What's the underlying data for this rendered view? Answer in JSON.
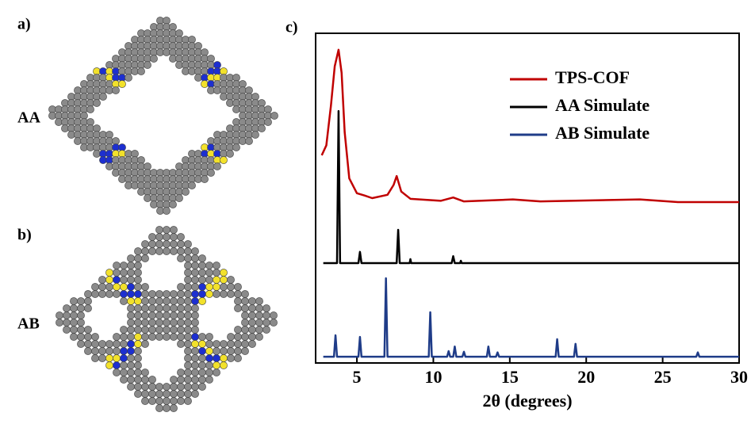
{
  "panels": {
    "a": {
      "label": "a)",
      "stacking": "AA"
    },
    "b": {
      "label": "b)",
      "stacking": "AB"
    },
    "c": {
      "label": "c)"
    }
  },
  "chart_data": {
    "type": "line",
    "x_label": "2θ (degrees)",
    "xlim": [
      2.3,
      30
    ],
    "xticks": [
      5,
      10,
      15,
      20,
      25,
      30
    ],
    "ylim": [
      0,
      100
    ],
    "legend": "upper right",
    "series": [
      {
        "name": "TPS-COF",
        "color": "#c00000",
        "x": [
          2.7,
          3.0,
          3.3,
          3.55,
          3.8,
          4.0,
          4.2,
          4.5,
          5.0,
          5.5,
          6.0,
          7.0,
          7.4,
          7.6,
          7.9,
          8.5,
          10.5,
          11.3,
          12,
          15.2,
          17,
          23.5,
          26,
          30
        ],
        "values": [
          63,
          66,
          78,
          90,
          95,
          88,
          70,
          56,
          51.5,
          50.8,
          50,
          51,
          54,
          56.7,
          52,
          49.8,
          49.2,
          50.2,
          49,
          49.6,
          49,
          49.6,
          48.8,
          48.8
        ]
      },
      {
        "name": "AA Simulate",
        "color": "#000000",
        "x": [
          2.8,
          3.7,
          3.8,
          3.9,
          5.1,
          5.2,
          5.3,
          7.6,
          7.7,
          7.8,
          8.45,
          8.5,
          8.55,
          11.2,
          11.3,
          11.4,
          11.75,
          11.8,
          11.85,
          30
        ],
        "values": [
          30.3,
          30.3,
          76.4,
          30.3,
          30.3,
          33.7,
          30.3,
          30.3,
          40.4,
          30.3,
          30.3,
          31.5,
          30.3,
          30.3,
          32.4,
          30.3,
          30.3,
          31.0,
          30.3,
          30.3
        ]
      },
      {
        "name": "AB Simulate",
        "color": "#1f3c88",
        "x": [
          2.8,
          3.5,
          3.6,
          3.7,
          5.1,
          5.2,
          5.3,
          6.8,
          6.9,
          7.0,
          9.7,
          9.8,
          9.9,
          10.9,
          11.0,
          11.1,
          11.3,
          11.4,
          11.5,
          11.9,
          12.0,
          12.1,
          13.5,
          13.6,
          13.7,
          14.1,
          14.2,
          14.3,
          18.0,
          18.1,
          18.2,
          19.2,
          19.3,
          19.4,
          27.2,
          27.3,
          27.4,
          30
        ],
        "values": [
          1.9,
          1.9,
          8.4,
          1.9,
          1.9,
          7.9,
          1.9,
          1.9,
          25.7,
          1.9,
          1.9,
          15.4,
          1.9,
          1.9,
          3.6,
          1.9,
          1.9,
          5.0,
          1.9,
          1.9,
          3.4,
          1.9,
          1.9,
          5.0,
          1.9,
          1.9,
          3.2,
          1.9,
          1.9,
          7.2,
          1.9,
          1.9,
          5.8,
          1.9,
          1.9,
          3.2,
          1.9,
          1.9
        ]
      }
    ]
  }
}
